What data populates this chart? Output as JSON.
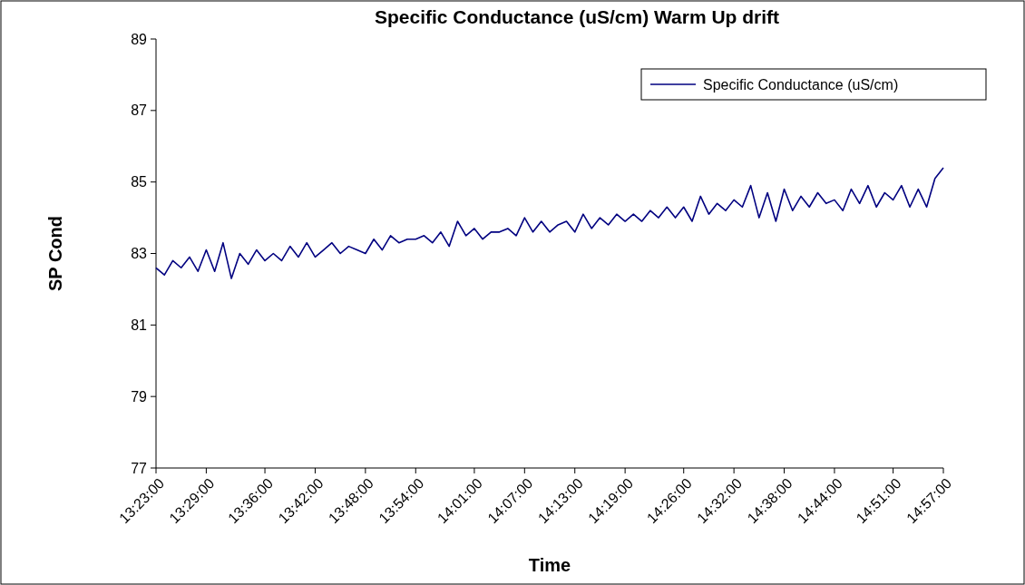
{
  "chart_data": {
    "type": "line",
    "title": "Specific Conductance (uS/cm) Warm Up drift",
    "xlabel": "Time",
    "ylabel": "SP Cond",
    "x": [
      13.3833,
      13.4,
      13.4167,
      13.4333,
      13.45,
      13.4667,
      13.4833,
      13.5,
      13.5167,
      13.5333,
      13.55,
      13.5667,
      13.5833,
      13.6,
      13.6167,
      13.6333,
      13.65,
      13.6667,
      13.6833,
      13.7,
      13.7167,
      13.7333,
      13.75,
      13.7667,
      13.7833,
      13.8,
      13.8167,
      13.8333,
      13.85,
      13.8667,
      13.8833,
      13.9,
      13.9167,
      13.9333,
      13.95,
      13.9667,
      13.9833,
      14,
      14.0167,
      14.0333,
      14.05,
      14.0667,
      14.0833,
      14.1,
      14.1167,
      14.1333,
      14.15,
      14.1667,
      14.1833,
      14.2,
      14.2167,
      14.2333,
      14.25,
      14.2667,
      14.2833,
      14.3,
      14.3167,
      14.3333,
      14.35,
      14.3667,
      14.3833,
      14.4,
      14.4167,
      14.4333,
      14.45,
      14.4667,
      14.4833,
      14.5,
      14.5167,
      14.5333,
      14.55,
      14.5667,
      14.5833,
      14.6,
      14.6167,
      14.6333,
      14.65,
      14.6667,
      14.6833,
      14.7,
      14.7167,
      14.7333,
      14.75,
      14.7667,
      14.7833,
      14.8,
      14.8167,
      14.8333,
      14.85,
      14.8667,
      14.8833,
      14.9,
      14.9167,
      14.9333,
      14.95
    ],
    "series": [
      {
        "name": "Specific Conductance (uS/cm)",
        "color": "#000080",
        "values": [
          82.6,
          82.4,
          82.8,
          82.6,
          82.9,
          82.5,
          83.1,
          82.5,
          83.3,
          82.3,
          83.0,
          82.7,
          83.1,
          82.8,
          83.0,
          82.8,
          83.2,
          82.9,
          83.3,
          82.9,
          83.1,
          83.3,
          83.0,
          83.2,
          83.1,
          83.0,
          83.4,
          83.1,
          83.5,
          83.3,
          83.4,
          83.4,
          83.5,
          83.3,
          83.6,
          83.2,
          83.9,
          83.5,
          83.7,
          83.4,
          83.6,
          83.6,
          83.7,
          83.5,
          84.0,
          83.6,
          83.9,
          83.6,
          83.8,
          83.9,
          83.6,
          84.1,
          83.7,
          84.0,
          83.8,
          84.1,
          83.9,
          84.1,
          83.9,
          84.2,
          84.0,
          84.3,
          84.0,
          84.3,
          83.9,
          84.6,
          84.1,
          84.4,
          84.2,
          84.5,
          84.3,
          84.9,
          84.0,
          84.7,
          83.9,
          84.8,
          84.2,
          84.6,
          84.3,
          84.7,
          84.4,
          84.5,
          84.2,
          84.8,
          84.4,
          84.9,
          84.3,
          84.7,
          84.5,
          84.9,
          84.3,
          84.8,
          84.3,
          85.1,
          85.4
        ]
      }
    ],
    "xlim": [
      13.3833,
      14.95
    ],
    "xticks": [
      {
        "value": 13.3833,
        "label": "13:23:00"
      },
      {
        "value": 13.4833,
        "label": "13:29:00"
      },
      {
        "value": 13.6,
        "label": "13:36:00"
      },
      {
        "value": 13.7,
        "label": "13:42:00"
      },
      {
        "value": 13.8,
        "label": "13:48:00"
      },
      {
        "value": 13.9,
        "label": "13:54:00"
      },
      {
        "value": 14.0167,
        "label": "14:01:00"
      },
      {
        "value": 14.1167,
        "label": "14:07:00"
      },
      {
        "value": 14.2167,
        "label": "14:13:00"
      },
      {
        "value": 14.3167,
        "label": "14:19:00"
      },
      {
        "value": 14.4333,
        "label": "14:26:00"
      },
      {
        "value": 14.5333,
        "label": "14:32:00"
      },
      {
        "value": 14.6333,
        "label": "14:38:00"
      },
      {
        "value": 14.7333,
        "label": "14:44:00"
      },
      {
        "value": 14.85,
        "label": "14:51:00"
      },
      {
        "value": 14.95,
        "label": "14:57:00"
      }
    ],
    "ylim": [
      77,
      89
    ],
    "yticks": [
      77,
      79,
      81,
      83,
      85,
      87,
      89
    ],
    "grid": false,
    "legend": "top right",
    "marker": "none",
    "line_style": "solid"
  }
}
